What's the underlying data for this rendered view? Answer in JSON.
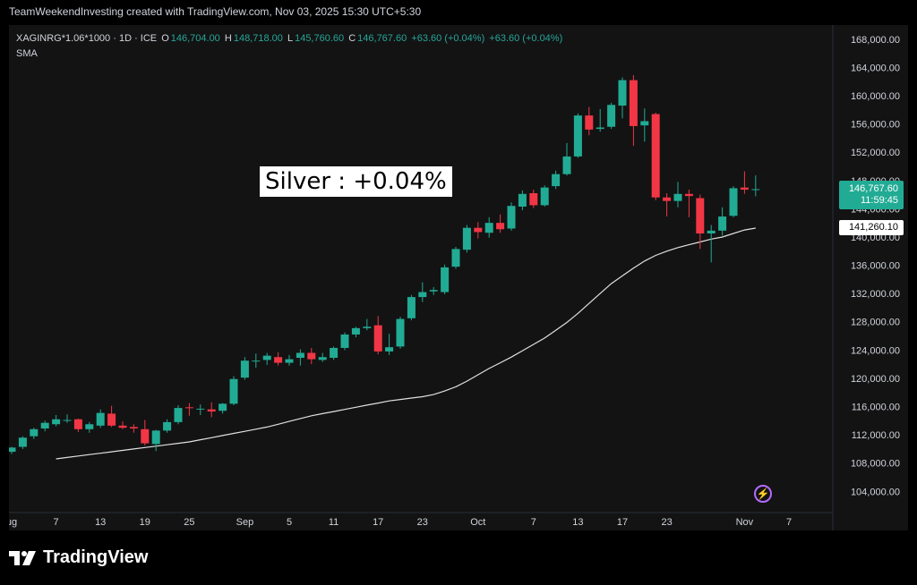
{
  "header": {
    "attribution": "TeamWeekendInvesting created with TradingView.com, Nov 03, 2025 15:30 UTC+5:30"
  },
  "legend": {
    "symbol": "XAGINRG*1.06*1000 · 1D · ICE",
    "o_label": "O",
    "o_value": "146,704.00",
    "h_label": "H",
    "h_value": "148,718.00",
    "l_label": "L",
    "l_value": "145,760.60",
    "c_label": "C",
    "c_value": "146,767.60",
    "change": "+63.60 (+0.04%)",
    "change2": "+63.60 (+0.04%)",
    "indicator": "SMA"
  },
  "annotation": "Silver : +0.04%",
  "price_label": {
    "price": "146,767.60",
    "countdown": "11:59:45"
  },
  "sma_label": "141,260.10",
  "footer": {
    "brand": "TradingView"
  },
  "colors": {
    "up": "#22ab94",
    "down": "#f23645",
    "sma": "#e0e0e0",
    "background": "#131313"
  },
  "chart_data": {
    "type": "candlestick",
    "ylim": [
      101000,
      170000
    ],
    "y_ticks": [
      {
        "value": 104000,
        "label": "104,000.00"
      },
      {
        "value": 108000,
        "label": "108,000.00"
      },
      {
        "value": 112000,
        "label": "112,000.00"
      },
      {
        "value": 116000,
        "label": "116,000.00"
      },
      {
        "value": 120000,
        "label": "120,000.00"
      },
      {
        "value": 124000,
        "label": "124,000.00"
      },
      {
        "value": 128000,
        "label": "128,000.00"
      },
      {
        "value": 132000,
        "label": "132,000.00"
      },
      {
        "value": 136000,
        "label": "136,000.00"
      },
      {
        "value": 140000,
        "label": "140,000.00"
      },
      {
        "value": 144000,
        "label": "144,000.00"
      },
      {
        "value": 148000,
        "label": "148,000.00"
      },
      {
        "value": 152000,
        "label": "152,000.00"
      },
      {
        "value": 156000,
        "label": "156,000.00"
      },
      {
        "value": 160000,
        "label": "160,000.00"
      },
      {
        "value": 164000,
        "label": "164,000.00"
      },
      {
        "value": 168000,
        "label": "168,000.00"
      }
    ],
    "x_ticks": [
      {
        "index": 0,
        "label": "ug"
      },
      {
        "index": 4,
        "label": "7"
      },
      {
        "index": 8,
        "label": "13"
      },
      {
        "index": 12,
        "label": "19"
      },
      {
        "index": 16,
        "label": "25"
      },
      {
        "index": 21,
        "label": "Sep"
      },
      {
        "index": 25,
        "label": "5"
      },
      {
        "index": 29,
        "label": "11"
      },
      {
        "index": 33,
        "label": "17"
      },
      {
        "index": 37,
        "label": "23"
      },
      {
        "index": 42,
        "label": "Oct"
      },
      {
        "index": 47,
        "label": "7"
      },
      {
        "index": 51,
        "label": "13"
      },
      {
        "index": 55,
        "label": "17"
      },
      {
        "index": 59,
        "label": "23"
      },
      {
        "index": 66,
        "label": "Nov"
      },
      {
        "index": 70,
        "label": "7"
      }
    ],
    "candles": [
      {
        "o": 109600,
        "h": 110300,
        "l": 109300,
        "c": 110200
      },
      {
        "o": 110300,
        "h": 111800,
        "l": 110000,
        "c": 111600
      },
      {
        "o": 111800,
        "h": 113000,
        "l": 111400,
        "c": 112800
      },
      {
        "o": 112900,
        "h": 114000,
        "l": 112500,
        "c": 113700
      },
      {
        "o": 113500,
        "h": 114800,
        "l": 113200,
        "c": 114200
      },
      {
        "o": 114100,
        "h": 114900,
        "l": 113700,
        "c": 114100
      },
      {
        "o": 114200,
        "h": 114300,
        "l": 112400,
        "c": 112800
      },
      {
        "o": 112800,
        "h": 113800,
        "l": 112300,
        "c": 113500
      },
      {
        "o": 113300,
        "h": 115600,
        "l": 113000,
        "c": 115100
      },
      {
        "o": 115000,
        "h": 116100,
        "l": 113100,
        "c": 113300
      },
      {
        "o": 113300,
        "h": 113900,
        "l": 112800,
        "c": 113000
      },
      {
        "o": 113100,
        "h": 113500,
        "l": 112300,
        "c": 112900
      },
      {
        "o": 112800,
        "h": 114100,
        "l": 110500,
        "c": 110800
      },
      {
        "o": 110700,
        "h": 112700,
        "l": 109700,
        "c": 112600
      },
      {
        "o": 112600,
        "h": 114200,
        "l": 112300,
        "c": 113800
      },
      {
        "o": 113800,
        "h": 116200,
        "l": 113500,
        "c": 115800
      },
      {
        "o": 115900,
        "h": 116500,
        "l": 114700,
        "c": 115800
      },
      {
        "o": 115700,
        "h": 116300,
        "l": 114800,
        "c": 115700
      },
      {
        "o": 115600,
        "h": 116600,
        "l": 114500,
        "c": 115300
      },
      {
        "o": 115400,
        "h": 116500,
        "l": 115000,
        "c": 116400
      },
      {
        "o": 116400,
        "h": 120300,
        "l": 116200,
        "c": 119900
      },
      {
        "o": 120100,
        "h": 123000,
        "l": 119800,
        "c": 122500
      },
      {
        "o": 122500,
        "h": 123500,
        "l": 121500,
        "c": 122500
      },
      {
        "o": 122600,
        "h": 123600,
        "l": 121900,
        "c": 123200
      },
      {
        "o": 123000,
        "h": 123700,
        "l": 121800,
        "c": 122200
      },
      {
        "o": 122200,
        "h": 123300,
        "l": 121800,
        "c": 122700
      },
      {
        "o": 122900,
        "h": 124100,
        "l": 121800,
        "c": 123600
      },
      {
        "o": 123600,
        "h": 124300,
        "l": 122000,
        "c": 122700
      },
      {
        "o": 122600,
        "h": 123600,
        "l": 122300,
        "c": 123000
      },
      {
        "o": 122900,
        "h": 124500,
        "l": 122600,
        "c": 124300
      },
      {
        "o": 124300,
        "h": 126500,
        "l": 124000,
        "c": 126200
      },
      {
        "o": 126200,
        "h": 127300,
        "l": 125800,
        "c": 127100
      },
      {
        "o": 127100,
        "h": 128400,
        "l": 126800,
        "c": 127300
      },
      {
        "o": 127500,
        "h": 128800,
        "l": 123400,
        "c": 123800
      },
      {
        "o": 123800,
        "h": 126300,
        "l": 123300,
        "c": 124400
      },
      {
        "o": 124500,
        "h": 128700,
        "l": 124200,
        "c": 128400
      },
      {
        "o": 128500,
        "h": 131800,
        "l": 128200,
        "c": 131500
      },
      {
        "o": 131500,
        "h": 133600,
        "l": 130800,
        "c": 132200
      },
      {
        "o": 132300,
        "h": 132900,
        "l": 131800,
        "c": 132500
      },
      {
        "o": 132200,
        "h": 136100,
        "l": 131900,
        "c": 135700
      },
      {
        "o": 135800,
        "h": 138600,
        "l": 135500,
        "c": 138300
      },
      {
        "o": 138200,
        "h": 141700,
        "l": 137800,
        "c": 141300
      },
      {
        "o": 141300,
        "h": 142100,
        "l": 139800,
        "c": 140700
      },
      {
        "o": 140600,
        "h": 142800,
        "l": 139900,
        "c": 142000
      },
      {
        "o": 142000,
        "h": 143200,
        "l": 140600,
        "c": 141100
      },
      {
        "o": 141200,
        "h": 144900,
        "l": 140900,
        "c": 144400
      },
      {
        "o": 144300,
        "h": 146600,
        "l": 143800,
        "c": 146100
      },
      {
        "o": 146200,
        "h": 146700,
        "l": 144100,
        "c": 144500
      },
      {
        "o": 144500,
        "h": 147300,
        "l": 144300,
        "c": 147000
      },
      {
        "o": 147200,
        "h": 149400,
        "l": 146800,
        "c": 148900
      },
      {
        "o": 148900,
        "h": 153300,
        "l": 148700,
        "c": 151400
      },
      {
        "o": 151400,
        "h": 157500,
        "l": 151200,
        "c": 157200
      },
      {
        "o": 157200,
        "h": 158400,
        "l": 154400,
        "c": 155200
      },
      {
        "o": 155300,
        "h": 158100,
        "l": 154900,
        "c": 155500
      },
      {
        "o": 155600,
        "h": 159000,
        "l": 155300,
        "c": 158700
      },
      {
        "o": 158600,
        "h": 162600,
        "l": 156800,
        "c": 162200
      },
      {
        "o": 162200,
        "h": 162900,
        "l": 152900,
        "c": 155700
      },
      {
        "o": 155800,
        "h": 158200,
        "l": 153500,
        "c": 156400
      },
      {
        "o": 157400,
        "h": 157600,
        "l": 145200,
        "c": 145600
      },
      {
        "o": 145600,
        "h": 146200,
        "l": 142900,
        "c": 145100
      },
      {
        "o": 145100,
        "h": 147800,
        "l": 144200,
        "c": 146100
      },
      {
        "o": 146100,
        "h": 146700,
        "l": 142800,
        "c": 145800
      },
      {
        "o": 145500,
        "h": 146000,
        "l": 138300,
        "c": 140500
      },
      {
        "o": 140500,
        "h": 141700,
        "l": 136400,
        "c": 140900
      },
      {
        "o": 140900,
        "h": 144200,
        "l": 140200,
        "c": 142900
      },
      {
        "o": 143000,
        "h": 147200,
        "l": 142800,
        "c": 146900
      },
      {
        "o": 147000,
        "h": 149300,
        "l": 146100,
        "c": 146700
      },
      {
        "o": 146704,
        "h": 148718,
        "l": 145760.6,
        "c": 146767.6
      }
    ],
    "sma": [
      108600,
      108800,
      109000,
      109200,
      109400,
      109600,
      109800,
      110000,
      110200,
      110400,
      110600,
      110800,
      111000,
      111300,
      111600,
      111900,
      112200,
      112500,
      112800,
      113100,
      113500,
      113900,
      114300,
      114700,
      115000,
      115300,
      115600,
      115900,
      116200,
      116500,
      116800,
      117000,
      117200,
      117400,
      117700,
      118200,
      118800,
      119600,
      120500,
      121400,
      122200,
      123000,
      123900,
      124800,
      125700,
      126800,
      127900,
      129200,
      130600,
      132000,
      133400,
      134500,
      135600,
      136600,
      137400,
      138000,
      138500,
      138900,
      139300,
      139700,
      140000,
      140500,
      141000,
      141260
    ]
  }
}
